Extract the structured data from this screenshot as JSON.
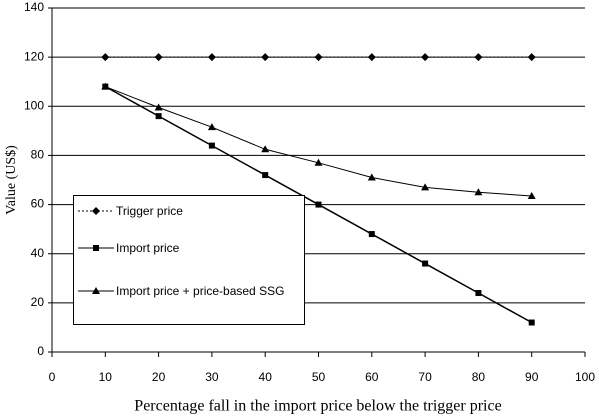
{
  "chart_data": {
    "type": "line",
    "x_label": "Percentage fall in the import price below the trigger price",
    "y_label": "Value (US$)",
    "x": [
      10,
      20,
      30,
      40,
      50,
      60,
      70,
      80,
      90
    ],
    "series": [
      {
        "name": "Trigger price",
        "color": "#000000",
        "values": [
          120,
          120,
          120,
          120,
          120,
          120,
          120,
          120,
          120
        ]
      },
      {
        "name": "Import price",
        "color": "#000000",
        "values": [
          108,
          96,
          84,
          72,
          60,
          48,
          36,
          24,
          12
        ]
      },
      {
        "name": "Import price + price-based SSG",
        "color": "#000000",
        "values": [
          108,
          99.5,
          91.5,
          82.5,
          77,
          71,
          67,
          65,
          63.5
        ]
      }
    ],
    "xlim": [
      0,
      100
    ],
    "xticks": [
      0,
      10,
      20,
      30,
      40,
      50,
      60,
      70,
      80,
      90,
      100
    ],
    "ylim": [
      0,
      140
    ],
    "yticks": [
      0,
      20,
      40,
      60,
      80,
      100,
      120,
      140
    ],
    "grid": true,
    "legend": "left"
  }
}
